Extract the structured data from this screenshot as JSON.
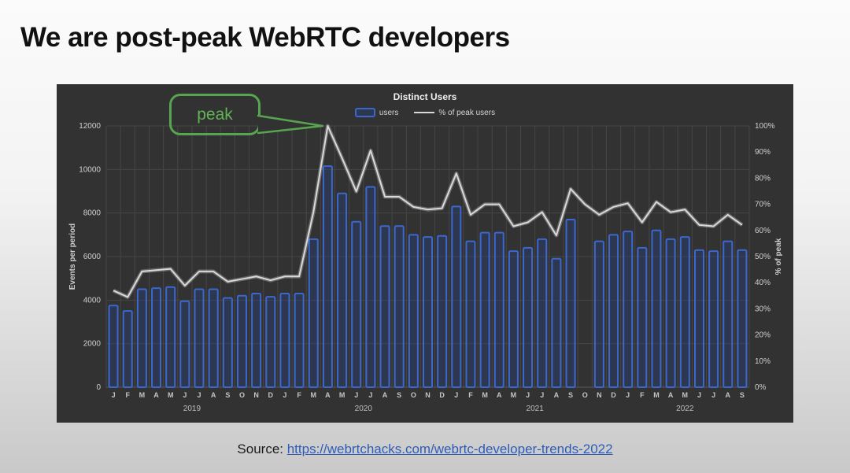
{
  "slide": {
    "title": "We are post-peak WebRTC developers",
    "source_label": "Source: ",
    "source_link": "https://webrtchacks.com/webrtc-developer-trends-2022"
  },
  "chart": {
    "title": "Distinct Users",
    "legend": {
      "users": "users",
      "line": "% of peak users"
    },
    "y_left_label": "Events per period",
    "y_right_label": "% of peak",
    "annotation": "peak"
  },
  "chart_data": {
    "type": "bar",
    "title": "Distinct Users",
    "note": "bar series 'users' on left axis; line series '% of peak users' on right axis; no bar for Oct 2021; peak Apr 2020",
    "x": [
      "J",
      "F",
      "M",
      "A",
      "M",
      "J",
      "J",
      "A",
      "S",
      "O",
      "N",
      "D",
      "J",
      "F",
      "M",
      "A",
      "M",
      "J",
      "J",
      "A",
      "S",
      "O",
      "N",
      "D",
      "J",
      "F",
      "M",
      "A",
      "M",
      "J",
      "J",
      "A",
      "S",
      "O",
      "N",
      "D",
      "J",
      "F",
      "M",
      "A",
      "M",
      "J",
      "J",
      "A",
      "S"
    ],
    "years": [
      {
        "label": "2019",
        "start": 0,
        "count": 12
      },
      {
        "label": "2020",
        "start": 12,
        "count": 12
      },
      {
        "label": "2021",
        "start": 24,
        "count": 12
      },
      {
        "label": "2022",
        "start": 36,
        "count": 9
      }
    ],
    "series": [
      {
        "name": "users",
        "type": "bar",
        "axis": "left",
        "color": "#3b68cf",
        "values": [
          3750,
          3500,
          4500,
          4550,
          4600,
          3950,
          4500,
          4500,
          4100,
          4200,
          4300,
          4150,
          4300,
          4300,
          6800,
          10150,
          8900,
          7600,
          9200,
          7400,
          7400,
          7000,
          6900,
          6950,
          8300,
          6700,
          7100,
          7100,
          6250,
          6400,
          6800,
          5900,
          7700,
          null,
          6700,
          7000,
          7150,
          6400,
          7200,
          6800,
          6900,
          6300,
          6250,
          6700,
          6300
        ]
      },
      {
        "name": "% of peak users",
        "type": "line",
        "axis": "right",
        "color": "#d9d9d9",
        "values": [
          37,
          34.5,
          44.3,
          44.8,
          45.3,
          38.9,
          44.3,
          44.3,
          40.4,
          41.4,
          42.4,
          40.9,
          42.4,
          42.4,
          67,
          100,
          87.7,
          74.9,
          90.6,
          72.9,
          72.9,
          69,
          68,
          68.5,
          81.8,
          66,
          70,
          70,
          61.6,
          63.1,
          67,
          58.1,
          75.9,
          70,
          66,
          69,
          70.4,
          63.1,
          70.9,
          67,
          68,
          62.1,
          61.6,
          66,
          62.1
        ]
      }
    ],
    "y_left": {
      "label": "Events per period",
      "min": 0,
      "max": 12000,
      "tick_step": 2000,
      "ticks": [
        "0",
        "2000",
        "4000",
        "6000",
        "8000",
        "10000",
        "12000"
      ]
    },
    "y_right": {
      "label": "% of peak",
      "min": 0,
      "max": 100,
      "tick_step": 10,
      "ticks": [
        "0%",
        "10%",
        "20%",
        "30%",
        "40%",
        "50%",
        "60%",
        "70%",
        "80%",
        "90%",
        "100%"
      ]
    },
    "grid": true,
    "legend_position": "top",
    "annotation": {
      "text": "peak",
      "points_to": "Apr 2020"
    }
  }
}
